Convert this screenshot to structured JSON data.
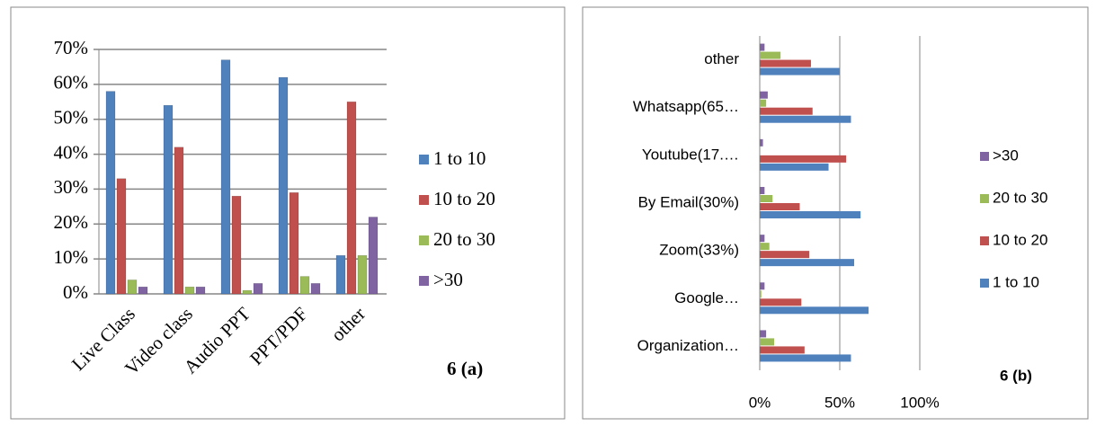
{
  "chart_data": [
    {
      "type": "bar",
      "caption": "6  (a)",
      "categories": [
        "Live Class",
        "Video class",
        "Audio PPT",
        "PPT/PDF",
        "other"
      ],
      "series": [
        {
          "name": "1 to 10",
          "color": "#4f81bd",
          "values": [
            58,
            54,
            67,
            62,
            11
          ]
        },
        {
          "name": "10 to 20",
          "color": "#c0504d",
          "values": [
            33,
            42,
            28,
            29,
            55
          ]
        },
        {
          "name": "20 to 30",
          "color": "#9bbb59",
          "values": [
            4,
            2,
            1,
            5,
            11
          ]
        },
        {
          "name": ">30",
          "color": "#8064a2",
          "values": [
            2,
            2,
            3,
            3,
            22
          ]
        }
      ],
      "ylim": [
        0,
        70
      ],
      "yticks": [
        {
          "value": 0,
          "label": "0%"
        },
        {
          "value": 10,
          "label": "10%"
        },
        {
          "value": 20,
          "label": "20%"
        },
        {
          "value": 30,
          "label": "30%"
        },
        {
          "value": 40,
          "label": "40%"
        },
        {
          "value": 50,
          "label": "50%"
        },
        {
          "value": 60,
          "label": "60%"
        },
        {
          "value": 70,
          "label": "70%"
        }
      ],
      "grid": true,
      "legend": "right"
    },
    {
      "type": "hbar",
      "caption": "6  (b)",
      "categories": [
        "Organization…",
        "Google…",
        "Zoom(33%)",
        "By Email(30%)",
        "Youtube(17.…",
        "Whatsapp(65…",
        "other"
      ],
      "series": [
        {
          "name": "1 to 10",
          "color": "#4f81bd",
          "values": [
            57,
            68,
            59,
            63,
            43,
            57,
            50
          ]
        },
        {
          "name": "10 to 20",
          "color": "#c0504d",
          "values": [
            28,
            26,
            31,
            25,
            54,
            33,
            32
          ]
        },
        {
          "name": "20 to 30",
          "color": "#9bbb59",
          "values": [
            9,
            1,
            6,
            8,
            0,
            4,
            13
          ]
        },
        {
          "name": ">30",
          "color": "#8064a2",
          "values": [
            4,
            3,
            3,
            3,
            2,
            5,
            3
          ]
        }
      ],
      "xlim": [
        0,
        100
      ],
      "xticks": [
        {
          "value": 0,
          "label": "0%"
        },
        {
          "value": 50,
          "label": "50%"
        },
        {
          "value": 100,
          "label": "100%"
        }
      ],
      "grid": true,
      "legend": "right"
    }
  ]
}
